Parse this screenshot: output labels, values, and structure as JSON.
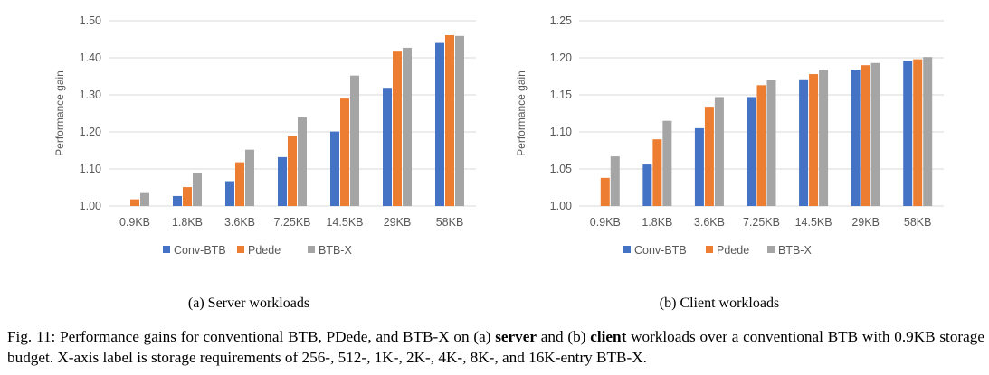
{
  "chart_data": [
    {
      "type": "bar",
      "ylabel": "Performance gain",
      "ylim": [
        1.0,
        1.5
      ],
      "yticks": [
        "1.00",
        "1.10",
        "1.20",
        "1.30",
        "1.40",
        "1.50"
      ],
      "grid": true,
      "legend_position": "bottom",
      "categories": [
        "0.9KB",
        "1.8KB",
        "3.6KB",
        "7.25KB",
        "14.5KB",
        "29KB",
        "58KB"
      ],
      "series": [
        {
          "name": "Conv-BTB",
          "color": "#4472C4",
          "values": [
            1.0,
            1.027,
            1.067,
            1.132,
            1.201,
            1.319,
            1.44
          ]
        },
        {
          "name": "Pdede",
          "color": "#ED7D31",
          "values": [
            1.018,
            1.051,
            1.118,
            1.188,
            1.29,
            1.419,
            1.461
          ]
        },
        {
          "name": "BTB-X",
          "color": "#A5A5A5",
          "values": [
            1.035,
            1.088,
            1.152,
            1.24,
            1.352,
            1.427,
            1.459
          ]
        }
      ]
    },
    {
      "type": "bar",
      "ylabel": "Performance gain",
      "ylim": [
        1.0,
        1.25
      ],
      "yticks": [
        "1.00",
        "1.05",
        "1.10",
        "1.15",
        "1.20",
        "1.25"
      ],
      "grid": true,
      "legend_position": "bottom",
      "categories": [
        "0.9KB",
        "1.8KB",
        "3.6KB",
        "7.25KB",
        "14.5KB",
        "29KB",
        "58KB"
      ],
      "series": [
        {
          "name": "Conv-BTB",
          "color": "#4472C4",
          "values": [
            1.0,
            1.056,
            1.105,
            1.147,
            1.171,
            1.184,
            1.196
          ]
        },
        {
          "name": "Pdede",
          "color": "#ED7D31",
          "values": [
            1.038,
            1.09,
            1.134,
            1.163,
            1.178,
            1.19,
            1.198
          ]
        },
        {
          "name": "BTB-X",
          "color": "#A5A5A5",
          "values": [
            1.067,
            1.115,
            1.147,
            1.17,
            1.184,
            1.193,
            1.201
          ]
        }
      ]
    }
  ],
  "captions": {
    "a": "(a) Server workloads",
    "b": "(b) Client workloads",
    "fig_prefix": "Fig. 11: Performance gains for conventional BTB, PDede, and BTB-X on (a) ",
    "fig_bold1": "server",
    "fig_mid": " and (b) ",
    "fig_bold2": "client",
    "fig_suffix": " workloads over a conventional BTB with 0.9KB storage budget. X-axis label is storage requirements of 256-, 512-, 1K-, 2K-, 4K-, 8K-, and 16K-entry BTB-X."
  }
}
